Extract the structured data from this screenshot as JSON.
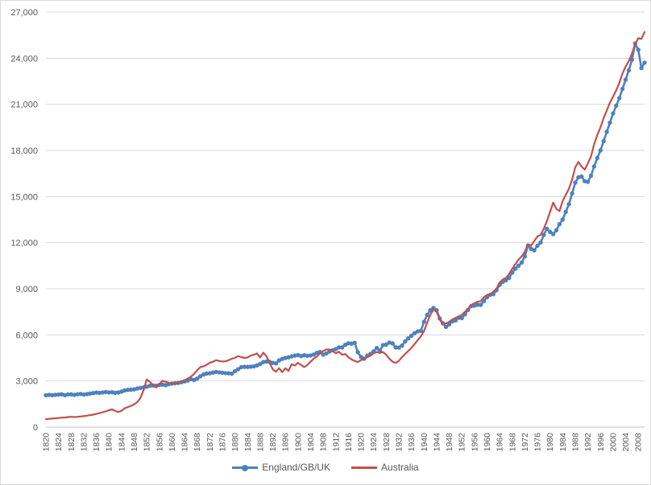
{
  "chart_data": {
    "type": "line",
    "title": "",
    "xlabel": "",
    "ylabel": "",
    "grid": "horizontal",
    "legend_position": "bottom",
    "y_axis": {
      "min": 0,
      "max": 27000,
      "interval": 3000,
      "tick_labels": [
        "0",
        "3,000",
        "6,000",
        "9,000",
        "12,000",
        "15,000",
        "18,000",
        "21,000",
        "24,000",
        "27,000"
      ]
    },
    "x_axis": {
      "first_year": 1820,
      "last_year": 2010,
      "tick_interval_years": 4,
      "tick_labels": [
        "1820",
        "1824",
        "1828",
        "1832",
        "1836",
        "1840",
        "1844",
        "1848",
        "1852",
        "1856",
        "1860",
        "1864",
        "1868",
        "1872",
        "1876",
        "1880",
        "1884",
        "1888",
        "1892",
        "1896",
        "1900",
        "1904",
        "1908",
        "1912",
        "1916",
        "1920",
        "1924",
        "1928",
        "1932",
        "1936",
        "1940",
        "1944",
        "1948",
        "1952",
        "1956",
        "1960",
        "1964",
        "1968",
        "1972",
        "1976",
        "1980",
        "1984",
        "1988",
        "1992",
        "1996",
        "2000",
        "2004",
        "2008"
      ]
    },
    "x": [
      1820,
      1821,
      1822,
      1823,
      1824,
      1825,
      1826,
      1827,
      1828,
      1829,
      1830,
      1831,
      1832,
      1833,
      1834,
      1835,
      1836,
      1837,
      1838,
      1839,
      1840,
      1841,
      1842,
      1843,
      1844,
      1845,
      1846,
      1847,
      1848,
      1849,
      1850,
      1851,
      1852,
      1853,
      1854,
      1855,
      1856,
      1857,
      1858,
      1859,
      1860,
      1861,
      1862,
      1863,
      1864,
      1865,
      1866,
      1867,
      1868,
      1869,
      1870,
      1871,
      1872,
      1873,
      1874,
      1875,
      1876,
      1877,
      1878,
      1879,
      1880,
      1881,
      1882,
      1883,
      1884,
      1885,
      1886,
      1887,
      1888,
      1889,
      1890,
      1891,
      1892,
      1893,
      1894,
      1895,
      1896,
      1897,
      1898,
      1899,
      1900,
      1901,
      1902,
      1903,
      1904,
      1905,
      1906,
      1907,
      1908,
      1909,
      1910,
      1911,
      1912,
      1913,
      1914,
      1915,
      1916,
      1917,
      1918,
      1919,
      1920,
      1921,
      1922,
      1923,
      1924,
      1925,
      1926,
      1927,
      1928,
      1929,
      1930,
      1931,
      1932,
      1933,
      1934,
      1935,
      1936,
      1937,
      1938,
      1939,
      1940,
      1941,
      1942,
      1943,
      1944,
      1945,
      1946,
      1947,
      1948,
      1949,
      1950,
      1951,
      1952,
      1953,
      1954,
      1955,
      1956,
      1957,
      1958,
      1959,
      1960,
      1961,
      1962,
      1963,
      1964,
      1965,
      1966,
      1967,
      1968,
      1969,
      1970,
      1971,
      1972,
      1973,
      1974,
      1975,
      1976,
      1977,
      1978,
      1979,
      1980,
      1981,
      1982,
      1983,
      1984,
      1985,
      1986,
      1987,
      1988,
      1989,
      1990,
      1991,
      1992,
      1993,
      1994,
      1995,
      1996,
      1997,
      1998,
      1999,
      2000,
      2001,
      2002,
      2003,
      2004,
      2005,
      2006,
      2007,
      2008,
      2009,
      2010
    ],
    "series": [
      {
        "name": "England/GB/UK",
        "color": "#4F81BD",
        "marker": "circle",
        "values": [
          2074,
          2091,
          2078,
          2098,
          2115,
          2135,
          2078,
          2124,
          2132,
          2096,
          2133,
          2155,
          2112,
          2146,
          2184,
          2211,
          2247,
          2226,
          2256,
          2281,
          2256,
          2266,
          2236,
          2252,
          2312,
          2386,
          2424,
          2432,
          2456,
          2504,
          2546,
          2582,
          2626,
          2682,
          2712,
          2692,
          2738,
          2762,
          2734,
          2792,
          2832,
          2852,
          2872,
          2921,
          2972,
          3022,
          3122,
          3061,
          3155,
          3302,
          3421,
          3478,
          3503,
          3548,
          3588,
          3562,
          3532,
          3512,
          3498,
          3472,
          3642,
          3762,
          3898,
          3921,
          3912,
          3932,
          3948,
          4012,
          4102,
          4228,
          4272,
          4238,
          4178,
          4142,
          4338,
          4438,
          4498,
          4542,
          4598,
          4652,
          4682,
          4622,
          4678,
          4638,
          4662,
          4722,
          4828,
          4882,
          4712,
          4792,
          4912,
          4998,
          5078,
          5192,
          5178,
          5352,
          5452,
          5432,
          5482,
          4872,
          4562,
          4442,
          4652,
          4762,
          4922,
          5142,
          4982,
          5332,
          5362,
          5502,
          5442,
          5182,
          5172,
          5302,
          5572,
          5772,
          5942,
          6112,
          6222,
          6262,
          6852,
          7292,
          7602,
          7752,
          7602,
          7062,
          6752,
          6522,
          6682,
          6882,
          6942,
          7112,
          7092,
          7342,
          7622,
          7872,
          7902,
          7952,
          7952,
          8202,
          8452,
          8602,
          8652,
          8902,
          9252,
          9452,
          9552,
          9702,
          10052,
          10302,
          10502,
          10702,
          11102,
          11802,
          11602,
          11502,
          11802,
          12002,
          12502,
          12902,
          12702,
          12552,
          12802,
          13202,
          13502,
          14002,
          14502,
          15202,
          15902,
          16252,
          16302,
          16002,
          15952,
          16352,
          16952,
          17502,
          18002,
          18602,
          19202,
          19802,
          20402,
          20902,
          21402,
          22002,
          22602,
          23202,
          23902,
          24952,
          24552,
          23352,
          23702
        ]
      },
      {
        "name": "Australia",
        "color": "#C0504D",
        "marker": "none",
        "values": [
          520,
          538,
          556,
          572,
          590,
          612,
          628,
          648,
          668,
          655,
          672,
          692,
          712,
          742,
          778,
          812,
          858,
          908,
          962,
          1028,
          1098,
          1152,
          1052,
          982,
          1062,
          1232,
          1302,
          1382,
          1482,
          1622,
          1902,
          2402,
          3102,
          2952,
          2702,
          2582,
          2802,
          3012,
          2952,
          2882,
          2842,
          2862,
          2892,
          2962,
          3052,
          3152,
          3282,
          3452,
          3702,
          3902,
          3952,
          4052,
          4182,
          4252,
          4352,
          4302,
          4272,
          4282,
          4352,
          4442,
          4502,
          4622,
          4552,
          4502,
          4532,
          4652,
          4702,
          4792,
          4532,
          4842,
          4622,
          4182,
          3752,
          3602,
          3832,
          3572,
          3832,
          3652,
          4092,
          4002,
          4182,
          4042,
          3902,
          4052,
          4252,
          4452,
          4602,
          4802,
          4952,
          5052,
          5052,
          4952,
          4802,
          4902,
          4702,
          4752,
          4552,
          4402,
          4302,
          4232,
          4352,
          4452,
          4552,
          4652,
          4802,
          4882,
          4822,
          4882,
          4702,
          4452,
          4252,
          4182,
          4302,
          4552,
          4752,
          4952,
          5152,
          5402,
          5652,
          5902,
          6252,
          6802,
          7302,
          7652,
          7502,
          7002,
          6702,
          6752,
          6852,
          7002,
          7102,
          7202,
          7302,
          7502,
          7702,
          7952,
          8052,
          8152,
          8202,
          8452,
          8602,
          8652,
          8802,
          9002,
          9402,
          9602,
          9702,
          9952,
          10302,
          10602,
          10902,
          11102,
          11402,
          11902,
          11802,
          12102,
          12402,
          12502,
          12902,
          13402,
          14002,
          14602,
          14202,
          14052,
          14702,
          15102,
          15502,
          16102,
          16902,
          17252,
          16952,
          16752,
          17152,
          17602,
          18402,
          19002,
          19502,
          20102,
          20602,
          21102,
          21502,
          21902,
          22402,
          23002,
          23452,
          23802,
          24302,
          24902,
          25302,
          25252,
          25702
        ]
      }
    ],
    "colors": {
      "gridline": "#D9D9D9",
      "axis_line": "#C6C6C6",
      "tick_text": "#595959",
      "series_england": "#4F81BD",
      "series_australia": "#C0504D"
    }
  }
}
